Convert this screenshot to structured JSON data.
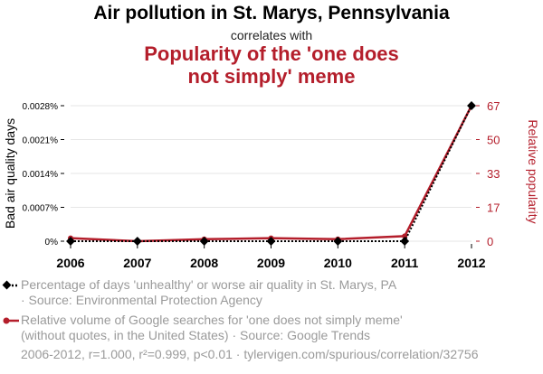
{
  "header": {
    "title": "Air pollution in St. Marys, Pennsylvania",
    "correlates": "correlates with",
    "subtitle": "Popularity of the 'one does not simply' meme"
  },
  "legend": {
    "series1_line1": "Percentage of days 'unhealthy' or worse air quality in St. Marys, PA",
    "series1_line2": "· Source: Environmental Protection Agency",
    "series2_line1": "Relative volume of Google searches for 'one does not simply meme'",
    "series2_line2": "(without quotes, in the United States) · Source: Google Trends"
  },
  "footer": "2006-2012, r=1.000, r²=0.999, p<0.01 · tylervigen.com/spurious/correlation/32756",
  "colors": {
    "series1": "#000000",
    "series2": "#b41e2b",
    "grid": "#e6e6e6"
  },
  "chart_data": {
    "type": "line",
    "x": [
      "2006",
      "2007",
      "2008",
      "2009",
      "2010",
      "2011",
      "2012"
    ],
    "ylabel_left": "Bad air quality days",
    "ylabel_right": "Relative popularity",
    "left_ticks": [
      "0%",
      "0.0007%",
      "0.0014%",
      "0.0021%",
      "0.0028%"
    ],
    "right_ticks": [
      "0",
      "17",
      "33",
      "50",
      "67"
    ],
    "ylim_left": [
      0,
      0.0028
    ],
    "ylim_right": [
      0,
      67
    ],
    "series": [
      {
        "name": "Percentage of days 'unhealthy' or worse air quality in St. Marys, PA",
        "axis": "left",
        "style": "dotted",
        "marker": "diamond",
        "values": [
          0,
          0,
          0,
          0,
          0,
          0,
          0.0028
        ]
      },
      {
        "name": "Relative volume of Google searches for 'one does not simply meme'",
        "axis": "right",
        "style": "solid",
        "values": [
          1.5,
          0,
          1,
          1.5,
          1,
          2.5,
          67
        ]
      }
    ],
    "grid": true
  }
}
